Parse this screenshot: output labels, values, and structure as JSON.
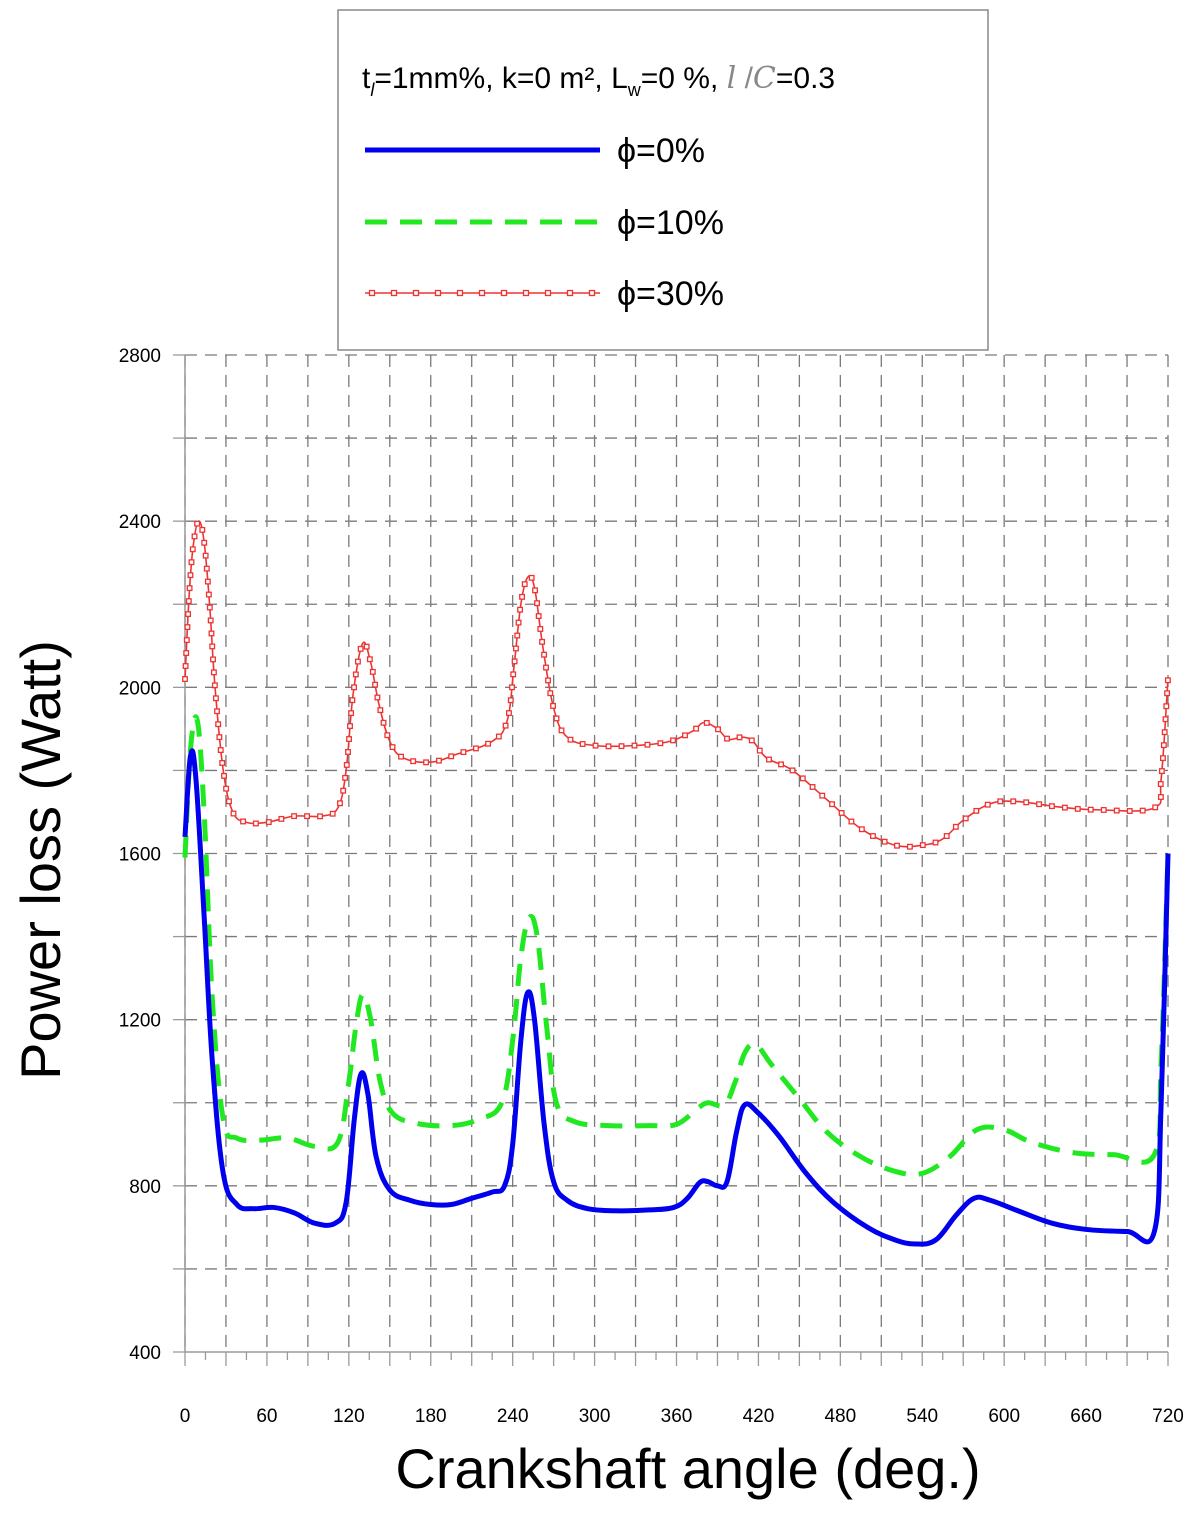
{
  "chart_data": {
    "type": "line",
    "title": "",
    "legend_title": {
      "prefix": "t",
      "sub": "l",
      "rest1": "=1mm%, k=0 m², L",
      "sub2": "w",
      "rest2": "=0 %, ",
      "ital1": "l",
      "slash": " /",
      "ital2": "C",
      "rest3": "=0.3"
    },
    "xlabel": "Crankshaft angle (deg.)",
    "ylabel": "Power loss  (Watt)",
    "xlim": [
      0,
      720
    ],
    "ylim": [
      400,
      2800
    ],
    "x_ticks": [
      0,
      60,
      120,
      180,
      240,
      300,
      360,
      420,
      480,
      540,
      600,
      660,
      720
    ],
    "y_ticks": [
      400,
      800,
      1200,
      1600,
      2000,
      2400,
      2800
    ],
    "grid": true,
    "legend_position": "top-center",
    "series": [
      {
        "name": "ϕ=0%",
        "color": "#0000ee",
        "style": "solid",
        "points": [
          [
            0,
            1640
          ],
          [
            4,
            1835
          ],
          [
            8,
            1780
          ],
          [
            14,
            1450
          ],
          [
            20,
            1100
          ],
          [
            28,
            830
          ],
          [
            38,
            755
          ],
          [
            50,
            745
          ],
          [
            65,
            748
          ],
          [
            80,
            735
          ],
          [
            95,
            710
          ],
          [
            110,
            710
          ],
          [
            118,
            760
          ],
          [
            124,
            960
          ],
          [
            129,
            1070
          ],
          [
            134,
            1020
          ],
          [
            140,
            870
          ],
          [
            150,
            790
          ],
          [
            165,
            765
          ],
          [
            180,
            755
          ],
          [
            195,
            755
          ],
          [
            210,
            770
          ],
          [
            225,
            785
          ],
          [
            234,
            800
          ],
          [
            240,
            900
          ],
          [
            246,
            1150
          ],
          [
            251,
            1265
          ],
          [
            256,
            1200
          ],
          [
            263,
            950
          ],
          [
            270,
            810
          ],
          [
            280,
            765
          ],
          [
            295,
            745
          ],
          [
            315,
            740
          ],
          [
            340,
            742
          ],
          [
            358,
            748
          ],
          [
            368,
            770
          ],
          [
            377,
            808
          ],
          [
            383,
            810
          ],
          [
            390,
            800
          ],
          [
            397,
            810
          ],
          [
            404,
            930
          ],
          [
            410,
            995
          ],
          [
            420,
            975
          ],
          [
            435,
            920
          ],
          [
            455,
            830
          ],
          [
            475,
            760
          ],
          [
            500,
            700
          ],
          [
            520,
            670
          ],
          [
            535,
            660
          ],
          [
            550,
            670
          ],
          [
            565,
            730
          ],
          [
            578,
            770
          ],
          [
            590,
            765
          ],
          [
            610,
            740
          ],
          [
            635,
            710
          ],
          [
            660,
            695
          ],
          [
            690,
            690
          ],
          [
            710,
            690
          ],
          [
            715,
            1000
          ],
          [
            720,
            1600
          ]
        ]
      },
      {
        "name": "ϕ=10%",
        "color": "#22e822",
        "style": "dashed",
        "points": [
          [
            0,
            1590
          ],
          [
            4,
            1850
          ],
          [
            9,
            1920
          ],
          [
            14,
            1700
          ],
          [
            20,
            1250
          ],
          [
            28,
            960
          ],
          [
            38,
            915
          ],
          [
            55,
            910
          ],
          [
            75,
            915
          ],
          [
            95,
            895
          ],
          [
            112,
            905
          ],
          [
            120,
            1050
          ],
          [
            125,
            1180
          ],
          [
            130,
            1260
          ],
          [
            136,
            1200
          ],
          [
            143,
            1050
          ],
          [
            152,
            975
          ],
          [
            170,
            950
          ],
          [
            195,
            945
          ],
          [
            215,
            960
          ],
          [
            232,
            1000
          ],
          [
            240,
            1150
          ],
          [
            246,
            1350
          ],
          [
            252,
            1445
          ],
          [
            258,
            1400
          ],
          [
            265,
            1180
          ],
          [
            272,
            1000
          ],
          [
            285,
            955
          ],
          [
            310,
            945
          ],
          [
            340,
            945
          ],
          [
            360,
            948
          ],
          [
            375,
            985
          ],
          [
            383,
            1000
          ],
          [
            395,
            995
          ],
          [
            403,
            1050
          ],
          [
            410,
            1120
          ],
          [
            418,
            1140
          ],
          [
            430,
            1090
          ],
          [
            450,
            1010
          ],
          [
            470,
            930
          ],
          [
            495,
            870
          ],
          [
            520,
            835
          ],
          [
            540,
            830
          ],
          [
            560,
            870
          ],
          [
            580,
            935
          ],
          [
            600,
            935
          ],
          [
            620,
            905
          ],
          [
            650,
            880
          ],
          [
            680,
            875
          ],
          [
            710,
            875
          ],
          [
            715,
            1100
          ],
          [
            720,
            1600
          ]
        ]
      },
      {
        "name": "ϕ=30%",
        "color": "#ee3333",
        "style": "solid-marker",
        "points": [
          [
            0,
            2020
          ],
          [
            3,
            2220
          ],
          [
            6,
            2340
          ],
          [
            10,
            2400
          ],
          [
            14,
            2350
          ],
          [
            18,
            2200
          ],
          [
            22,
            2000
          ],
          [
            28,
            1800
          ],
          [
            35,
            1700
          ],
          [
            45,
            1675
          ],
          [
            60,
            1675
          ],
          [
            80,
            1690
          ],
          [
            100,
            1690
          ],
          [
            112,
            1710
          ],
          [
            118,
            1800
          ],
          [
            123,
            1980
          ],
          [
            130,
            2105
          ],
          [
            136,
            2060
          ],
          [
            142,
            1960
          ],
          [
            150,
            1870
          ],
          [
            160,
            1830
          ],
          [
            180,
            1820
          ],
          [
            200,
            1840
          ],
          [
            225,
            1870
          ],
          [
            236,
            1920
          ],
          [
            241,
            2050
          ],
          [
            246,
            2200
          ],
          [
            251,
            2265
          ],
          [
            256,
            2240
          ],
          [
            262,
            2100
          ],
          [
            270,
            1950
          ],
          [
            280,
            1880
          ],
          [
            300,
            1860
          ],
          [
            330,
            1860
          ],
          [
            355,
            1870
          ],
          [
            372,
            1895
          ],
          [
            380,
            1915
          ],
          [
            390,
            1900
          ],
          [
            398,
            1875
          ],
          [
            408,
            1880
          ],
          [
            416,
            1870
          ],
          [
            426,
            1830
          ],
          [
            445,
            1800
          ],
          [
            470,
            1730
          ],
          [
            495,
            1660
          ],
          [
            520,
            1620
          ],
          [
            540,
            1620
          ],
          [
            555,
            1635
          ],
          [
            570,
            1680
          ],
          [
            590,
            1720
          ],
          [
            610,
            1725
          ],
          [
            640,
            1712
          ],
          [
            670,
            1705
          ],
          [
            710,
            1710
          ],
          [
            715,
            1780
          ],
          [
            720,
            2020
          ]
        ]
      }
    ]
  }
}
